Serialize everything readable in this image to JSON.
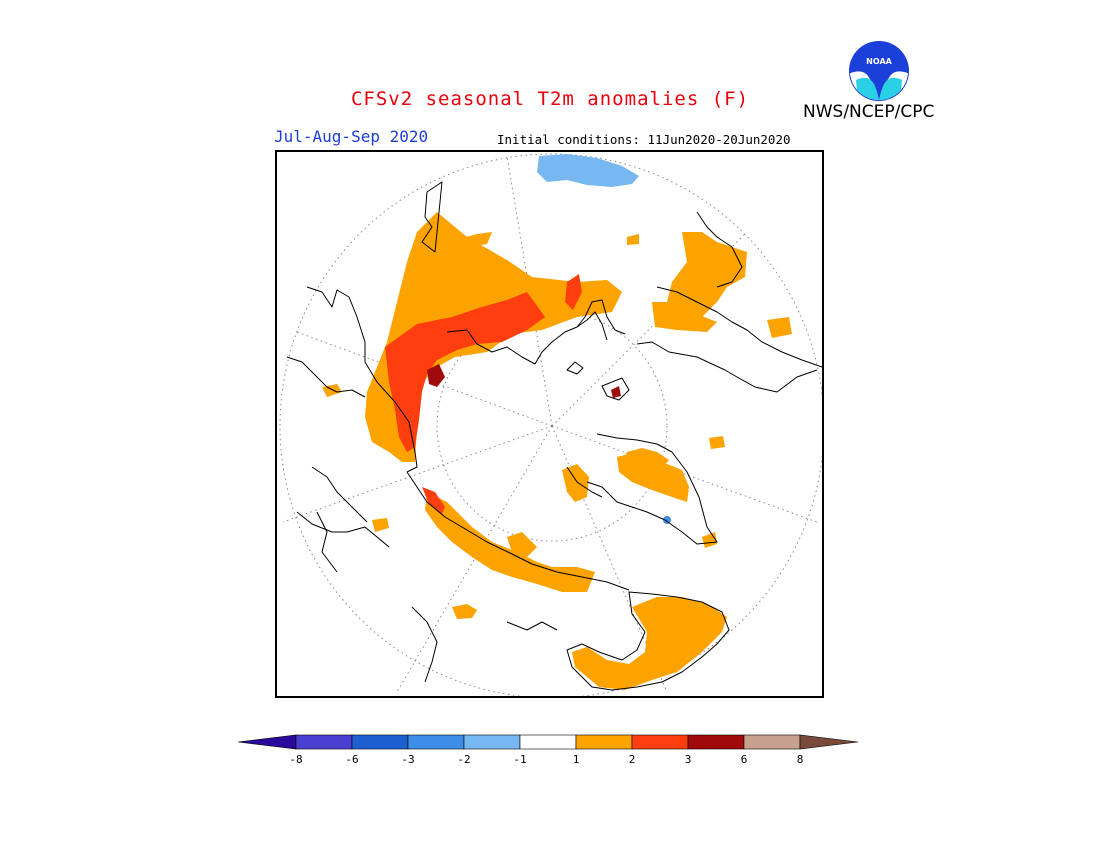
{
  "header": {
    "title": "CFSv2 seasonal T2m anomalies (F)",
    "agency": "NWS/NCEP/CPC",
    "logo_text": "NOAA",
    "season": "Jul-Aug-Sep 2020",
    "initial_conditions": "Initial conditions: 11Jun2020-20Jun2020"
  },
  "colors": {
    "title": "#e8000b",
    "season": "#1f3dd6",
    "coast": "#000000",
    "graticule": "#888888"
  },
  "map": {
    "projection": "north-polar-stereographic"
  },
  "legend": {
    "ticks": [
      "-8",
      "-6",
      "-3",
      "-2",
      "-1",
      "1",
      "2",
      "3",
      "6",
      "8"
    ],
    "bins": [
      {
        "color": "#2a0a9c"
      },
      {
        "color": "#4a3fd0"
      },
      {
        "color": "#1e5fcf"
      },
      {
        "color": "#3c8ee6"
      },
      {
        "color": "#78b8f2"
      },
      {
        "color": "#ffffff"
      },
      {
        "color": "#fca300"
      },
      {
        "color": "#ff3e0f"
      },
      {
        "color": "#a10a0a"
      },
      {
        "color": "#c8a090"
      },
      {
        "color": "#7a4a3a"
      }
    ]
  }
}
